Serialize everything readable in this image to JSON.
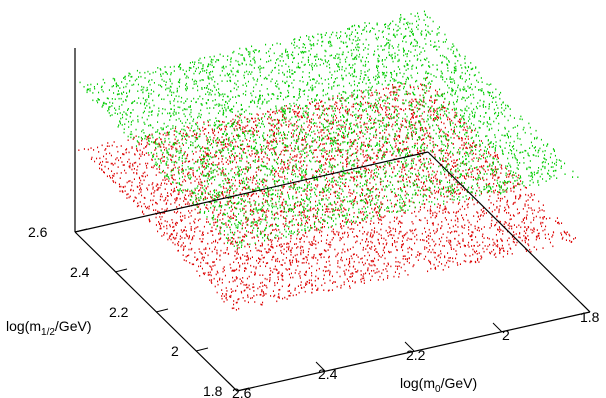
{
  "chart_data": {
    "type": "scatter",
    "dimension": "3d",
    "x_axis": {
      "label_base": "log(m",
      "label_sub": "0",
      "label_tail": "/GeV)",
      "range": [
        1.8,
        2.6
      ],
      "ticks": [
        "2.6",
        "2.4",
        "2.2",
        "2",
        "1.8"
      ]
    },
    "y_axis": {
      "label_base": "log(m",
      "label_sub": "1/2",
      "label_tail": "/GeV)",
      "range": [
        1.8,
        2.6
      ],
      "ticks": [
        "1.8",
        "2",
        "2.2",
        "2.4",
        "2.6"
      ]
    },
    "z_axis": {
      "label": "",
      "ticks": []
    },
    "series": [
      {
        "color": "#00cc00",
        "plane": "upper",
        "x_range": [
          1.8,
          2.6
        ],
        "y_range": [
          1.8,
          2.6
        ],
        "approx_points": 4500
      },
      {
        "color": "#dd0000",
        "plane": "lower",
        "x_range": [
          1.8,
          2.6
        ],
        "y_range": [
          1.8,
          2.6
        ],
        "approx_points": 4500
      }
    ],
    "grid": false,
    "legend": "none"
  }
}
